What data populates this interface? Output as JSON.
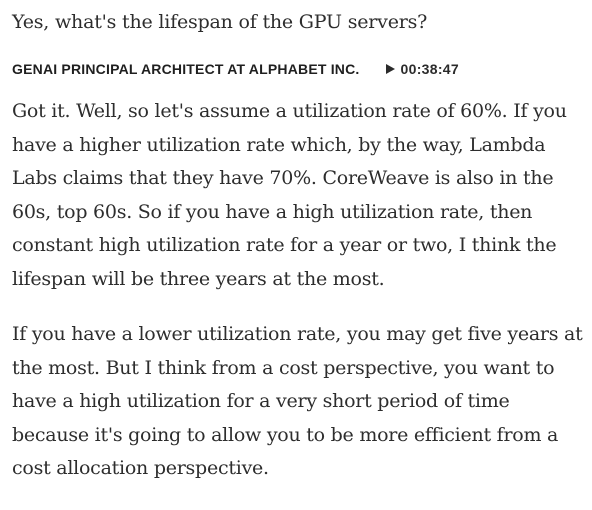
{
  "question": {
    "text": "Yes, what's the lifespan of the GPU servers?"
  },
  "speaker": {
    "label": "GENAI PRINCIPAL ARCHITECT AT ALPHABET INC.",
    "play_icon": "play-icon",
    "timestamp": "00:38:47"
  },
  "answer": {
    "paragraphs": [
      "Got it. Well, so let's assume a utilization rate of 60%. If you have a higher utilization rate which, by the way, Lambda Labs claims that they have 70%. CoreWeave is also in the 60s, top 60s. So if you have a high utilization rate, then constant high utilization rate for a year or two, I think the lifespan will be three years at the most.",
      "If you have a lower utilization rate, you may get five years at the most. But I think from a cost perspective, you want to have a high utilization for a very short period of time because it's going to allow you to be more efficient from a cost allocation perspective."
    ]
  },
  "colors": {
    "text": "#2d2d2d",
    "label": "#1f1f1f",
    "background": "#ffffff"
  }
}
